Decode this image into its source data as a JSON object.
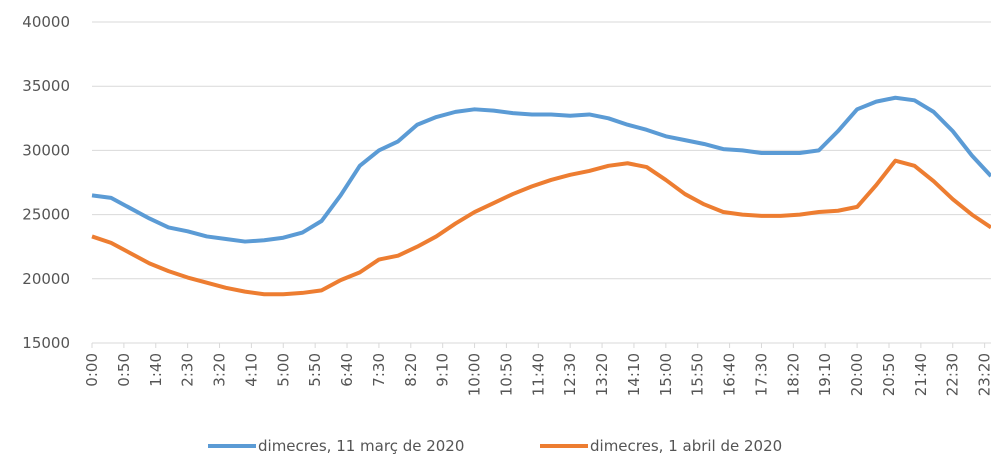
{
  "chart_data": {
    "type": "line",
    "x": [
      0,
      30,
      60,
      90,
      120,
      150,
      180,
      210,
      240,
      270,
      300,
      330,
      360,
      390,
      420,
      450,
      480,
      510,
      540,
      570,
      600,
      630,
      660,
      690,
      720,
      750,
      780,
      810,
      840,
      870,
      900,
      930,
      960,
      990,
      1020,
      1050,
      1080,
      1110,
      1140,
      1170,
      1200,
      1230,
      1260,
      1290,
      1320,
      1350,
      1380,
      1410
    ],
    "series": [
      {
        "name": "dimecres, 11 març de 2020",
        "color": "#5b9bd5",
        "values": [
          26500,
          26300,
          25500,
          24700,
          24000,
          23700,
          23300,
          23100,
          22900,
          23000,
          23200,
          23600,
          24500,
          26500,
          28800,
          30000,
          30700,
          32000,
          32600,
          33000,
          33200,
          33100,
          32900,
          32800,
          32800,
          32700,
          32800,
          32500,
          32000,
          31600,
          31100,
          30800,
          30500,
          30100,
          30000,
          29800,
          29800,
          29800,
          30000,
          31500,
          33200,
          33800,
          34100,
          33900,
          33000,
          31500,
          29600,
          28000
        ]
      },
      {
        "name": "dimecres, 1 abril de 2020",
        "color": "#ed7d31",
        "values": [
          23300,
          22800,
          22000,
          21200,
          20600,
          20100,
          19700,
          19300,
          19000,
          18800,
          18800,
          18900,
          19100,
          19900,
          20500,
          21500,
          21800,
          22500,
          23300,
          24300,
          25200,
          25900,
          26600,
          27200,
          27700,
          28100,
          28400,
          28800,
          29000,
          28700,
          27700,
          26600,
          25800,
          25200,
          25000,
          24900,
          24900,
          25000,
          25200,
          25300,
          25600,
          27300,
          29200,
          28800,
          27600,
          26200,
          25000,
          24000
        ]
      }
    ],
    "xlim": [
      0,
      1410
    ],
    "xticks": [
      {
        "value": 0,
        "label": "0:00"
      },
      {
        "value": 50,
        "label": "0:50"
      },
      {
        "value": 100,
        "label": "1:40"
      },
      {
        "value": 150,
        "label": "2:30"
      },
      {
        "value": 200,
        "label": "3:20"
      },
      {
        "value": 250,
        "label": "4:10"
      },
      {
        "value": 300,
        "label": "5:00"
      },
      {
        "value": 350,
        "label": "5:50"
      },
      {
        "value": 400,
        "label": "6:40"
      },
      {
        "value": 450,
        "label": "7:30"
      },
      {
        "value": 500,
        "label": "8:20"
      },
      {
        "value": 550,
        "label": "9:10"
      },
      {
        "value": 600,
        "label": "10:00"
      },
      {
        "value": 650,
        "label": "10:50"
      },
      {
        "value": 700,
        "label": "11:40"
      },
      {
        "value": 750,
        "label": "12:30"
      },
      {
        "value": 800,
        "label": "13:20"
      },
      {
        "value": 850,
        "label": "14:10"
      },
      {
        "value": 900,
        "label": "15:00"
      },
      {
        "value": 950,
        "label": "15:50"
      },
      {
        "value": 1000,
        "label": "16:40"
      },
      {
        "value": 1050,
        "label": "17:30"
      },
      {
        "value": 1100,
        "label": "18:20"
      },
      {
        "value": 1150,
        "label": "19:10"
      },
      {
        "value": 1200,
        "label": "20:00"
      },
      {
        "value": 1250,
        "label": "20:50"
      },
      {
        "value": 1300,
        "label": "21:40"
      },
      {
        "value": 1350,
        "label": "22:30"
      },
      {
        "value": 1400,
        "label": "23:20"
      }
    ],
    "ylim": [
      15000,
      40000
    ],
    "yticks": [
      15000,
      20000,
      25000,
      30000,
      35000,
      40000
    ],
    "grid": true
  }
}
